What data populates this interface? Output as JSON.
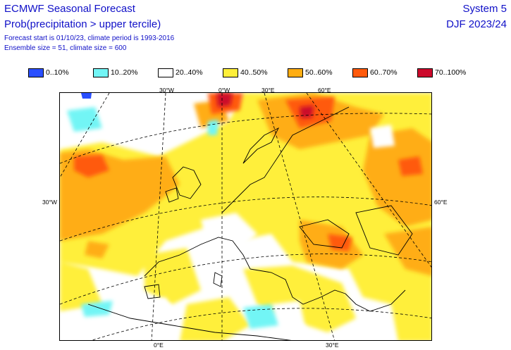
{
  "header": {
    "title": "ECMWF Seasonal Forecast",
    "subtitle": "Prob(precipitation > upper tercile)",
    "forecast_info": "Forecast start is 01/10/23, climate period is 1993-2016",
    "ensemble_info": "Ensemble size = 51, climate size = 600",
    "system": "System 5",
    "season": "DJF 2023/24"
  },
  "legend": [
    {
      "label": "0..10%",
      "color": "#2a4fff"
    },
    {
      "label": "10..20%",
      "color": "#72f5f5"
    },
    {
      "label": "20..40%",
      "color": "#ffffff"
    },
    {
      "label": "40..50%",
      "color": "#ffef3a"
    },
    {
      "label": "50..60%",
      "color": "#ffad12"
    },
    {
      "label": "60..70%",
      "color": "#ff5a0c"
    },
    {
      "label": "70..100%",
      "color": "#cc0a2c"
    }
  ],
  "coords": {
    "top": [
      "30°W",
      "0°W",
      "30°E",
      "60°E"
    ],
    "left": "30°W",
    "right": "60°E",
    "bottom": [
      "0°E",
      "30°E"
    ]
  }
}
